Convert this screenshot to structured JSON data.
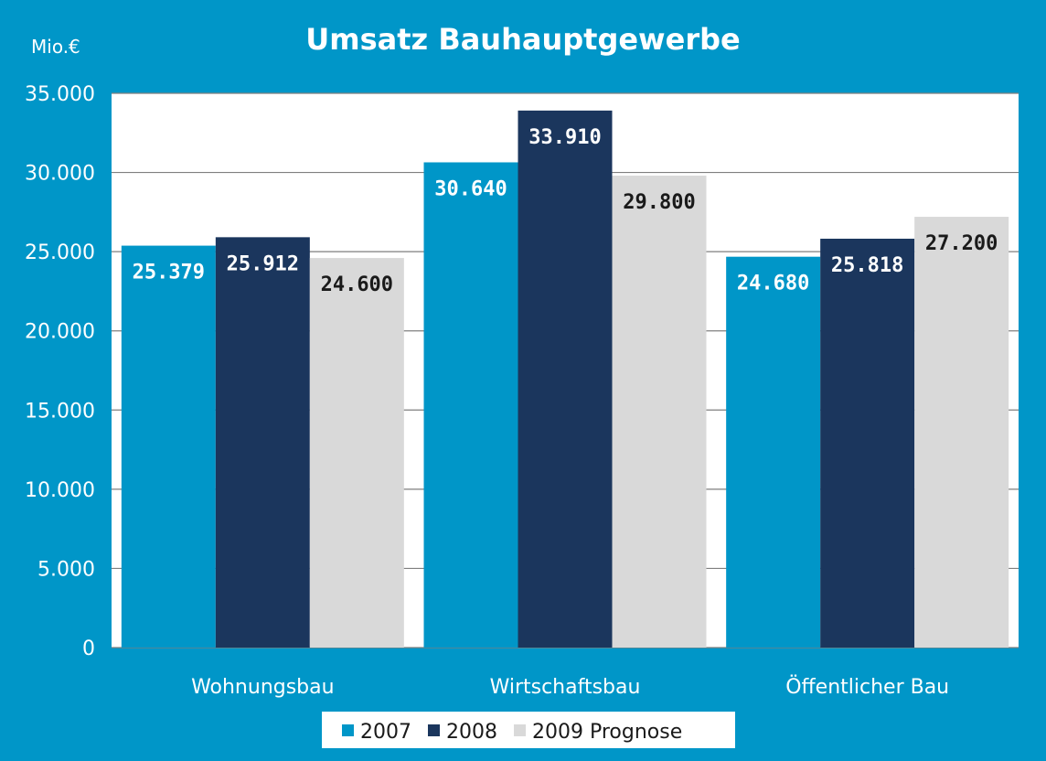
{
  "chart_data": {
    "type": "bar",
    "title": "Umsatz Bauhauptgewerbe",
    "unit_label": "Mio.€",
    "categories": [
      "Wohnungsbau",
      "Wirtschaftsbau",
      "Öffentlicher Bau"
    ],
    "series": [
      {
        "name": "2007",
        "color": "#0096c8",
        "label_color": "#ffffff",
        "values": [
          25379,
          30640,
          24680
        ],
        "labels": [
          "25.379",
          "30.640",
          "24.680"
        ]
      },
      {
        "name": "2008",
        "color": "#1b365d",
        "label_color": "#ffffff",
        "values": [
          25912,
          33910,
          25818
        ],
        "labels": [
          "25.912",
          "33.910",
          "25.818"
        ]
      },
      {
        "name": "2009 Prognose",
        "color": "#d9d9d9",
        "label_color": "#1a1a1a",
        "values": [
          24600,
          29800,
          27200
        ],
        "labels": [
          "24.600",
          "29.800",
          "27.200"
        ]
      }
    ],
    "ylim": [
      0,
      35000
    ],
    "yticks": [
      0,
      5000,
      10000,
      15000,
      20000,
      25000,
      30000,
      35000
    ],
    "ytick_labels": [
      "0",
      "5.000",
      "10.000",
      "15.000",
      "20.000",
      "25.000",
      "30.000",
      "35.000"
    ],
    "plot_background": "#ffffff",
    "grid": true,
    "legend_position": "bottom-center"
  }
}
